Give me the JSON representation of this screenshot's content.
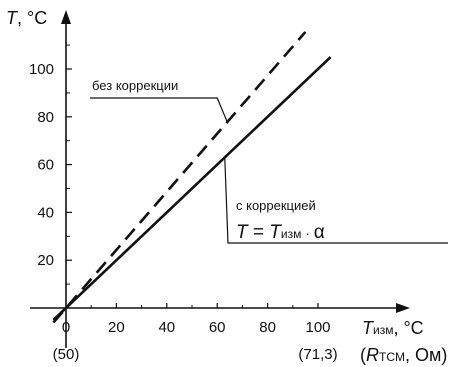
{
  "chart_data": {
    "type": "line",
    "x_axis": {
      "symbol": "T",
      "subscript": "изм",
      "unit": ", °C",
      "resistance_label": {
        "open": "(",
        "symbol": "R",
        "subscript": "TCM",
        "unit": ", Ом)"
      },
      "range": [
        -6,
        118
      ],
      "ticks": [
        0,
        20,
        40,
        60,
        80,
        100
      ],
      "tick_labels": [
        "0",
        "20",
        "40",
        "60",
        "80",
        "100"
      ],
      "secondary_labels": [
        {
          "x": 0,
          "text": "(50)"
        },
        {
          "x": 100,
          "text": "(71,3)"
        }
      ]
    },
    "y_axis": {
      "symbol": "T",
      "unit": ", °C",
      "range": [
        -8,
        122
      ],
      "ticks": [
        20,
        40,
        60,
        80,
        100
      ],
      "tick_labels": [
        "20",
        "40",
        "60",
        "80",
        "100"
      ]
    },
    "series": [
      {
        "name": "без коррекции",
        "style": "dashed",
        "x": [
          -5,
          95
        ],
        "y": [
          -6.1,
          115.5
        ]
      },
      {
        "name": "с коррекцией",
        "style": "solid",
        "x": [
          -5,
          105
        ],
        "y": [
          -5,
          105
        ]
      }
    ],
    "annotations": {
      "without_correction": "без коррекции",
      "with_correction": "с коррекцией",
      "formula": {
        "lhs": "T",
        "eq": " = ",
        "rhs": "T",
        "sub": "изм",
        "dot": " · ",
        "alpha": "α"
      }
    },
    "grid": false,
    "legend": "none"
  }
}
